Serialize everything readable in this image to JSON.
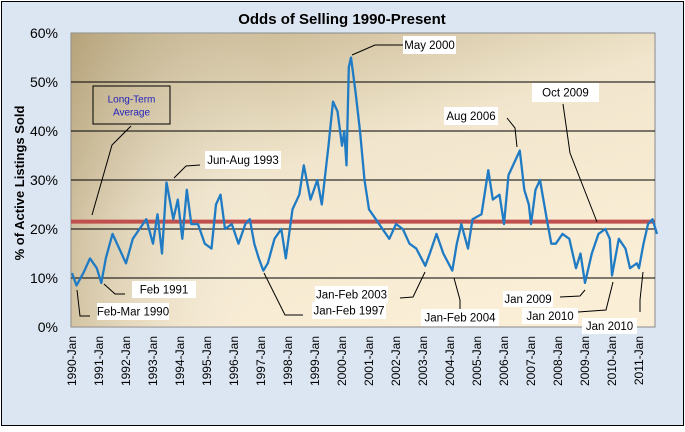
{
  "chart_data": {
    "type": "line",
    "title": "Odds of Selling 1990-Present",
    "ylabel": "% of Active Listings Sold",
    "xlabel": "",
    "ylim": [
      0,
      60
    ],
    "yticks": [
      "0%",
      "10%",
      "20%",
      "30%",
      "40%",
      "50%",
      "60%"
    ],
    "xlim": [
      "1990-01",
      "2011-09"
    ],
    "xticks": [
      "1990-Jan",
      "1991-Jan",
      "1992-Jan",
      "1993-Jan",
      "1994-Jan",
      "1995-Jan",
      "1996-Jan",
      "1997-Jan",
      "1998-Jan",
      "1999-Jan",
      "2000-Jan",
      "2001-Jan",
      "2002-Jan",
      "2003-Jan",
      "2004-Jan",
      "2005-Jan",
      "2006-Jan",
      "2007-Jan",
      "2008-Jan",
      "2009-Jan",
      "2010-Jan",
      "2011-Jan"
    ],
    "grid": "horizontal",
    "long_term_average": 21.5,
    "colors": {
      "series": "#1f7bc4",
      "average": "#c0504d",
      "background_outer": "#dce6f2",
      "plot_top": "#c2b28c",
      "plot_bottom": "#f8ecd4"
    },
    "series": [
      {
        "points": [
          [
            "1990-01",
            11
          ],
          [
            "1990-03",
            8.5
          ],
          [
            "1990-06",
            11
          ],
          [
            "1990-09",
            14
          ],
          [
            "1990-12",
            12
          ],
          [
            "1991-02",
            9
          ],
          [
            "1991-04",
            14
          ],
          [
            "1991-07",
            19
          ],
          [
            "1991-10",
            16
          ],
          [
            "1992-01",
            13
          ],
          [
            "1992-04",
            18
          ],
          [
            "1992-07",
            20
          ],
          [
            "1992-10",
            22
          ],
          [
            "1993-01",
            17
          ],
          [
            "1993-03",
            23
          ],
          [
            "1993-05",
            15
          ],
          [
            "1993-07",
            29.5
          ],
          [
            "1993-10",
            22
          ],
          [
            "1993-12",
            26
          ],
          [
            "1994-02",
            18
          ],
          [
            "1994-04",
            28
          ],
          [
            "1994-06",
            21
          ],
          [
            "1994-09",
            21
          ],
          [
            "1994-12",
            17
          ],
          [
            "1995-03",
            16
          ],
          [
            "1995-05",
            25
          ],
          [
            "1995-07",
            27
          ],
          [
            "1995-09",
            20
          ],
          [
            "1995-12",
            21
          ],
          [
            "1996-03",
            17
          ],
          [
            "1996-06",
            21
          ],
          [
            "1996-08",
            22
          ],
          [
            "1996-10",
            17
          ],
          [
            "1996-12",
            14
          ],
          [
            "1997-02",
            11.5
          ],
          [
            "1997-04",
            13
          ],
          [
            "1997-07",
            18
          ],
          [
            "1997-10",
            20
          ],
          [
            "1997-12",
            14
          ],
          [
            "1998-03",
            24
          ],
          [
            "1998-06",
            27
          ],
          [
            "1998-08",
            33
          ],
          [
            "1998-11",
            26
          ],
          [
            "1999-02",
            30
          ],
          [
            "1999-04",
            25
          ],
          [
            "1999-07",
            37
          ],
          [
            "1999-09",
            46
          ],
          [
            "1999-11",
            44
          ],
          [
            "2000-01",
            37
          ],
          [
            "2000-02",
            40
          ],
          [
            "2000-03",
            33
          ],
          [
            "2000-04",
            53
          ],
          [
            "2000-05",
            55
          ],
          [
            "2000-07",
            48
          ],
          [
            "2000-09",
            40
          ],
          [
            "2000-11",
            30
          ],
          [
            "2001-01",
            24
          ],
          [
            "2001-04",
            22
          ],
          [
            "2001-07",
            20
          ],
          [
            "2001-10",
            18
          ],
          [
            "2002-01",
            21
          ],
          [
            "2002-04",
            20
          ],
          [
            "2002-07",
            17
          ],
          [
            "2002-10",
            16
          ],
          [
            "2003-02",
            12.5
          ],
          [
            "2003-04",
            15
          ],
          [
            "2003-07",
            19
          ],
          [
            "2003-10",
            15
          ],
          [
            "2004-02",
            11.5
          ],
          [
            "2004-04",
            17
          ],
          [
            "2004-06",
            21
          ],
          [
            "2004-09",
            16
          ],
          [
            "2004-11",
            22
          ],
          [
            "2005-03",
            23
          ],
          [
            "2005-06",
            32
          ],
          [
            "2005-08",
            26
          ],
          [
            "2005-11",
            27
          ],
          [
            "2006-01",
            21
          ],
          [
            "2006-03",
            31
          ],
          [
            "2006-08",
            36
          ],
          [
            "2006-10",
            28
          ],
          [
            "2006-12",
            25
          ],
          [
            "2007-01",
            21
          ],
          [
            "2007-03",
            28
          ],
          [
            "2007-05",
            30
          ],
          [
            "2007-08",
            22
          ],
          [
            "2007-10",
            17
          ],
          [
            "2007-12",
            17
          ],
          [
            "2008-03",
            19
          ],
          [
            "2008-06",
            18
          ],
          [
            "2008-09",
            12
          ],
          [
            "2008-11",
            15
          ],
          [
            "2009-01",
            9
          ],
          [
            "2009-04",
            15
          ],
          [
            "2009-07",
            19
          ],
          [
            "2009-10",
            20
          ],
          [
            "2009-12",
            18
          ],
          [
            "2010-01",
            10.5
          ],
          [
            "2010-04",
            18
          ],
          [
            "2010-07",
            16
          ],
          [
            "2010-09",
            12
          ],
          [
            "2010-12",
            13
          ],
          [
            "2011-01",
            12
          ],
          [
            "2011-03",
            17
          ],
          [
            "2011-05",
            21
          ],
          [
            "2011-07",
            22
          ],
          [
            "2011-09",
            19
          ]
        ]
      }
    ],
    "annotations": [
      {
        "text": "Long-Term Average",
        "lines": [
          "Long-Term",
          "Average"
        ]
      },
      {
        "text": "Jun-Aug 1993"
      },
      {
        "text": "May 2000"
      },
      {
        "text": "Aug 2006"
      },
      {
        "text": "Oct 2009"
      },
      {
        "text": "Feb 1991"
      },
      {
        "text": "Feb-Mar 1990"
      },
      {
        "text": "Jan-Feb 1997"
      },
      {
        "text": "Jan-Feb 2003"
      },
      {
        "text": "Jan-Feb 2004"
      },
      {
        "text": "Jan 2009"
      },
      {
        "text": "Jan 2010"
      },
      {
        "text": "Jan 2010"
      }
    ]
  }
}
